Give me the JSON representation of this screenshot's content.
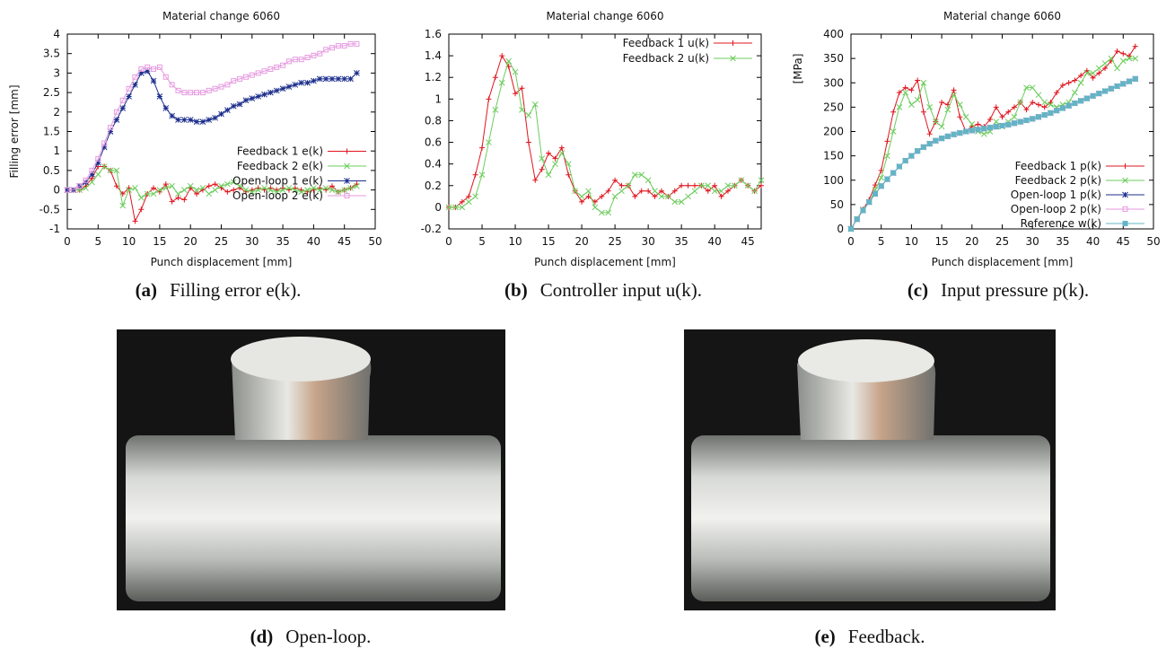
{
  "chart_data": [
    {
      "type": "line",
      "title": "Material change 6060",
      "x_label": "Punch displacement [mm]",
      "y_label": "Filling error [mm]",
      "x": [
        0,
        1,
        2,
        3,
        4,
        5,
        6,
        7,
        8,
        9,
        10,
        11,
        12,
        13,
        14,
        15,
        16,
        17,
        18,
        19,
        20,
        21,
        22,
        23,
        24,
        25,
        26,
        27,
        28,
        29,
        30,
        31,
        32,
        33,
        34,
        35,
        36,
        37,
        38,
        39,
        40,
        41,
        42,
        43,
        44,
        45,
        46,
        47
      ],
      "xlim": [
        0,
        50
      ],
      "xticks": [
        0,
        5,
        10,
        15,
        20,
        25,
        30,
        35,
        40,
        45,
        50
      ],
      "ylim": [
        -1,
        4
      ],
      "yticks": [
        -1,
        -0.5,
        0,
        0.5,
        1,
        1.5,
        2,
        2.5,
        3,
        3.5,
        4
      ],
      "legend": "right",
      "series": [
        {
          "name": "Feedback 1 e(k)",
          "color": "#e0141e",
          "marker": "+",
          "values": [
            0,
            0,
            0,
            0.1,
            0.3,
            0.6,
            0.6,
            0.5,
            0.1,
            -0.1,
            0.05,
            -0.8,
            -0.5,
            -0.1,
            0.05,
            -0.05,
            0.15,
            -0.3,
            -0.2,
            -0.25,
            0.05,
            -0.1,
            0,
            0.1,
            0.15,
            0.05,
            -0.05,
            0,
            0.05,
            -0.05,
            0,
            0.05,
            0,
            0.05,
            0,
            0.05,
            0,
            0.05,
            0,
            -0.05,
            0,
            0.05,
            0,
            0.1,
            -0.05,
            0,
            0.05,
            0.15
          ]
        },
        {
          "name": "Feedback 2 e(k)",
          "color": "#6ccc5c",
          "marker": "x",
          "values": [
            0,
            0,
            0,
            0.05,
            0.2,
            0.4,
            0.6,
            0.5,
            0.5,
            -0.4,
            0,
            0.05,
            -0.2,
            -0.1,
            -0.1,
            0,
            0.05,
            0.1,
            -0.1,
            0,
            0.1,
            0,
            0.05,
            -0.1,
            0,
            0.1,
            0.15,
            0.2,
            0.1,
            0,
            -0.05,
            0,
            0.05,
            0,
            -0.05,
            0,
            0.05,
            0,
            -0.05,
            0,
            0.05,
            0,
            0.05,
            0,
            -0.05,
            0,
            0.05,
            0.1
          ]
        },
        {
          "name": "Open-loop 1 e(k)",
          "color": "#1c2f8c",
          "marker": "*",
          "values": [
            0,
            0,
            0.1,
            0.2,
            0.4,
            0.7,
            1.1,
            1.5,
            1.8,
            2.1,
            2.4,
            2.7,
            3.0,
            3.05,
            2.8,
            2.4,
            2.1,
            1.9,
            1.8,
            1.8,
            1.8,
            1.75,
            1.75,
            1.8,
            1.85,
            1.95,
            2.05,
            2.15,
            2.2,
            2.3,
            2.35,
            2.4,
            2.45,
            2.5,
            2.55,
            2.6,
            2.65,
            2.7,
            2.75,
            2.75,
            2.8,
            2.85,
            2.85,
            2.85,
            2.85,
            2.85,
            2.85,
            3.0
          ]
        },
        {
          "name": "Open-loop 2 e(k)",
          "color": "#e69ae0",
          "marker": "square",
          "values": [
            0,
            0,
            0.1,
            0.25,
            0.5,
            0.8,
            1.2,
            1.6,
            2.0,
            2.3,
            2.6,
            2.9,
            3.1,
            3.15,
            3.1,
            3.15,
            2.9,
            2.7,
            2.55,
            2.5,
            2.5,
            2.5,
            2.5,
            2.55,
            2.6,
            2.65,
            2.7,
            2.8,
            2.85,
            2.9,
            2.95,
            3.0,
            3.05,
            3.1,
            3.15,
            3.2,
            3.3,
            3.35,
            3.35,
            3.4,
            3.45,
            3.5,
            3.6,
            3.65,
            3.7,
            3.7,
            3.75,
            3.75
          ]
        }
      ]
    },
    {
      "type": "line",
      "title": "Material change 6060",
      "x_label": "Punch displacement [mm]",
      "x": [
        0,
        1,
        2,
        3,
        4,
        5,
        6,
        7,
        8,
        9,
        10,
        11,
        12,
        13,
        14,
        15,
        16,
        17,
        18,
        19,
        20,
        21,
        22,
        23,
        24,
        25,
        26,
        27,
        28,
        29,
        30,
        31,
        32,
        33,
        34,
        35,
        36,
        37,
        38,
        39,
        40,
        41,
        42,
        43,
        44,
        45,
        46,
        47
      ],
      "xlim": [
        0,
        47
      ],
      "xticks": [
        0,
        5,
        10,
        15,
        20,
        25,
        30,
        35,
        40,
        45
      ],
      "ylim": [
        -0.2,
        1.6
      ],
      "yticks": [
        -0.2,
        0,
        0.2,
        0.4,
        0.6,
        0.8,
        1,
        1.2,
        1.4,
        1.6
      ],
      "legend": "top-right",
      "series": [
        {
          "name": "Feedback 1 u(k)",
          "color": "#e0141e",
          "marker": "+",
          "values": [
            0,
            0,
            0.05,
            0.1,
            0.3,
            0.55,
            1.0,
            1.2,
            1.4,
            1.3,
            1.05,
            1.1,
            0.6,
            0.25,
            0.35,
            0.5,
            0.45,
            0.55,
            0.3,
            0.15,
            0.05,
            0.1,
            0.05,
            0.1,
            0.15,
            0.25,
            0.2,
            0.2,
            0.1,
            0.15,
            0.15,
            0.1,
            0.15,
            0.1,
            0.15,
            0.2,
            0.2,
            0.2,
            0.2,
            0.15,
            0.2,
            0.1,
            0.15,
            0.2,
            0.25,
            0.2,
            0.15,
            0.2
          ]
        },
        {
          "name": "Feedback 2 u(k)",
          "color": "#6ccc5c",
          "marker": "x",
          "values": [
            0,
            0,
            0,
            0.05,
            0.1,
            0.3,
            0.6,
            0.9,
            1.15,
            1.35,
            1.25,
            0.9,
            0.85,
            0.95,
            0.45,
            0.3,
            0.4,
            0.5,
            0.4,
            0.15,
            0.1,
            0.15,
            0,
            -0.05,
            -0.05,
            0.1,
            0.15,
            0.2,
            0.3,
            0.3,
            0.25,
            0.15,
            0.1,
            0.1,
            0.05,
            0.05,
            0.1,
            0.15,
            0.2,
            0.2,
            0.15,
            0.15,
            0.2,
            0.2,
            0.25,
            0.2,
            0.15,
            0.25
          ]
        }
      ]
    },
    {
      "type": "line",
      "title": "Material change 6060",
      "x_label": "Punch displacement [mm]",
      "y_label": "[MPa]",
      "x": [
        0,
        1,
        2,
        3,
        4,
        5,
        6,
        7,
        8,
        9,
        10,
        11,
        12,
        13,
        14,
        15,
        16,
        17,
        18,
        19,
        20,
        21,
        22,
        23,
        24,
        25,
        26,
        27,
        28,
        29,
        30,
        31,
        32,
        33,
        34,
        35,
        36,
        37,
        38,
        39,
        40,
        41,
        42,
        43,
        44,
        45,
        46,
        47
      ],
      "xlim": [
        0,
        50
      ],
      "xticks": [
        0,
        5,
        10,
        15,
        20,
        25,
        30,
        35,
        40,
        45,
        50
      ],
      "ylim": [
        0,
        400
      ],
      "yticks": [
        0,
        50,
        100,
        150,
        200,
        250,
        300,
        350,
        400
      ],
      "legend": "bottom-right",
      "series": [
        {
          "name": "Feedback 1 p(k)",
          "color": "#e0141e",
          "marker": "+",
          "values": [
            0,
            20,
            40,
            60,
            90,
            120,
            180,
            240,
            280,
            290,
            285,
            305,
            240,
            195,
            220,
            260,
            255,
            285,
            230,
            200,
            210,
            215,
            210,
            225,
            250,
            230,
            240,
            250,
            260,
            245,
            260,
            255,
            250,
            260,
            280,
            295,
            300,
            305,
            315,
            325,
            310,
            320,
            330,
            345,
            365,
            360,
            355,
            375
          ]
        },
        {
          "name": "Feedback 2 p(k)",
          "color": "#6ccc5c",
          "marker": "x",
          "values": [
            0,
            20,
            40,
            55,
            80,
            105,
            150,
            200,
            250,
            280,
            255,
            265,
            300,
            250,
            220,
            210,
            245,
            275,
            255,
            230,
            215,
            200,
            195,
            200,
            220,
            210,
            220,
            230,
            260,
            290,
            290,
            275,
            260,
            255,
            250,
            255,
            260,
            280,
            300,
            320,
            320,
            330,
            340,
            350,
            330,
            345,
            350,
            350
          ]
        },
        {
          "name": "Open-loop 1 p(k)",
          "color": "#1c2f8c",
          "marker": "*",
          "values": [
            0,
            20,
            38,
            55,
            72,
            88,
            102,
            115,
            128,
            140,
            150,
            160,
            168,
            175,
            181,
            186,
            190,
            194,
            197,
            200,
            202,
            204,
            206,
            208,
            210,
            212,
            214,
            217,
            220,
            223,
            226,
            230,
            234,
            238,
            243,
            248,
            253,
            258,
            263,
            268,
            273,
            278,
            283,
            288,
            293,
            298,
            303,
            308
          ]
        },
        {
          "name": "Open-loop 2 p(k)",
          "color": "#e69ae0",
          "marker": "square",
          "values": [
            0,
            20,
            38,
            55,
            72,
            88,
            102,
            115,
            128,
            140,
            150,
            160,
            168,
            175,
            181,
            186,
            190,
            194,
            197,
            200,
            202,
            204,
            206,
            208,
            210,
            212,
            214,
            217,
            220,
            223,
            226,
            230,
            234,
            238,
            243,
            248,
            253,
            258,
            263,
            268,
            273,
            278,
            283,
            288,
            293,
            298,
            303,
            308
          ]
        },
        {
          "name": "Reference w(k)",
          "color": "#63b4c4",
          "marker": "filled-square",
          "values": [
            0,
            20,
            38,
            55,
            72,
            88,
            102,
            115,
            128,
            140,
            150,
            160,
            168,
            175,
            181,
            186,
            190,
            194,
            197,
            200,
            202,
            204,
            206,
            208,
            210,
            212,
            214,
            217,
            220,
            223,
            226,
            230,
            234,
            238,
            243,
            248,
            253,
            258,
            263,
            268,
            273,
            278,
            283,
            288,
            293,
            298,
            303,
            308
          ]
        }
      ]
    }
  ],
  "captions": [
    {
      "label": "(a)",
      "text": "Filling error e(k)."
    },
    {
      "label": "(b)",
      "text": "Controller input u(k)."
    },
    {
      "label": "(c)",
      "text": "Input pressure p(k)."
    },
    {
      "label": "(d)",
      "text": "Open-loop."
    },
    {
      "label": "(e)",
      "text": "Feedback."
    }
  ]
}
